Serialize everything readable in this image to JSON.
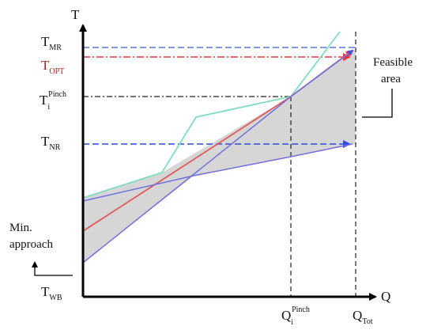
{
  "axes": {
    "y_label": "T",
    "x_label": "Q"
  },
  "y_labels": {
    "t_mr": {
      "main": "T",
      "sub": "MR"
    },
    "t_opt": {
      "main": "T",
      "sub": "OPT",
      "color": "#b02020"
    },
    "t_pinch": {
      "main": "T",
      "sub": "i",
      "sup": "Pinch"
    },
    "t_nr": {
      "main": "T",
      "sub": "NR"
    },
    "t_wb": {
      "main": "T",
      "sub": "WB"
    }
  },
  "x_labels": {
    "q_pinch": {
      "main": "Q",
      "sub": "i",
      "sup": "Pinch"
    },
    "q_tot": {
      "main": "Q",
      "sub": "Tot"
    }
  },
  "annotations": {
    "feasible_line1": "Feasible",
    "feasible_line2": "area",
    "min_line1": "Min.",
    "min_line2": "approach"
  },
  "colors": {
    "mr_line": "#5a78d8",
    "opt_line": "#e03a3a",
    "nr_line": "#2a4ed8",
    "green_curve": "#7fdcc0",
    "red_curve": "#e05a5a",
    "blue_curve": "#7070e0",
    "feasible_fill": "#d6d6d6",
    "pinch_guides": "#222222"
  }
}
